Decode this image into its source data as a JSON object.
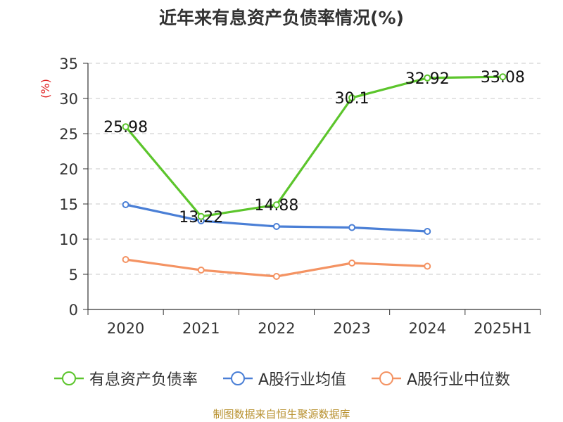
{
  "chart_data": {
    "type": "line",
    "title": "近年来有息资产负债率情况(%)",
    "ylabel": "(%)",
    "xlabel": "",
    "ylim": [
      0,
      35
    ],
    "yticks": [
      0,
      5,
      10,
      15,
      20,
      25,
      30,
      35
    ],
    "categories": [
      "2020",
      "2021",
      "2022",
      "2023",
      "2024",
      "2025H1"
    ],
    "grid": true,
    "legend_position": "bottom",
    "series": [
      {
        "name": "有息资产负债率",
        "color": "#5cc52c",
        "values": [
          25.98,
          13.22,
          14.88,
          30.1,
          32.92,
          33.08
        ],
        "labels": [
          "25.98",
          "13.22",
          "14.88",
          "30.1",
          "32.92",
          "33.08"
        ]
      },
      {
        "name": "A股行业均值",
        "color": "#4a7fd6",
        "values": [
          14.9,
          12.6,
          11.8,
          11.65,
          11.1,
          null
        ]
      },
      {
        "name": "A股行业中位数",
        "color": "#f49363",
        "values": [
          7.1,
          5.6,
          4.7,
          6.6,
          6.15,
          null
        ]
      }
    ]
  },
  "source": "制图数据来自恒生聚源数据库"
}
